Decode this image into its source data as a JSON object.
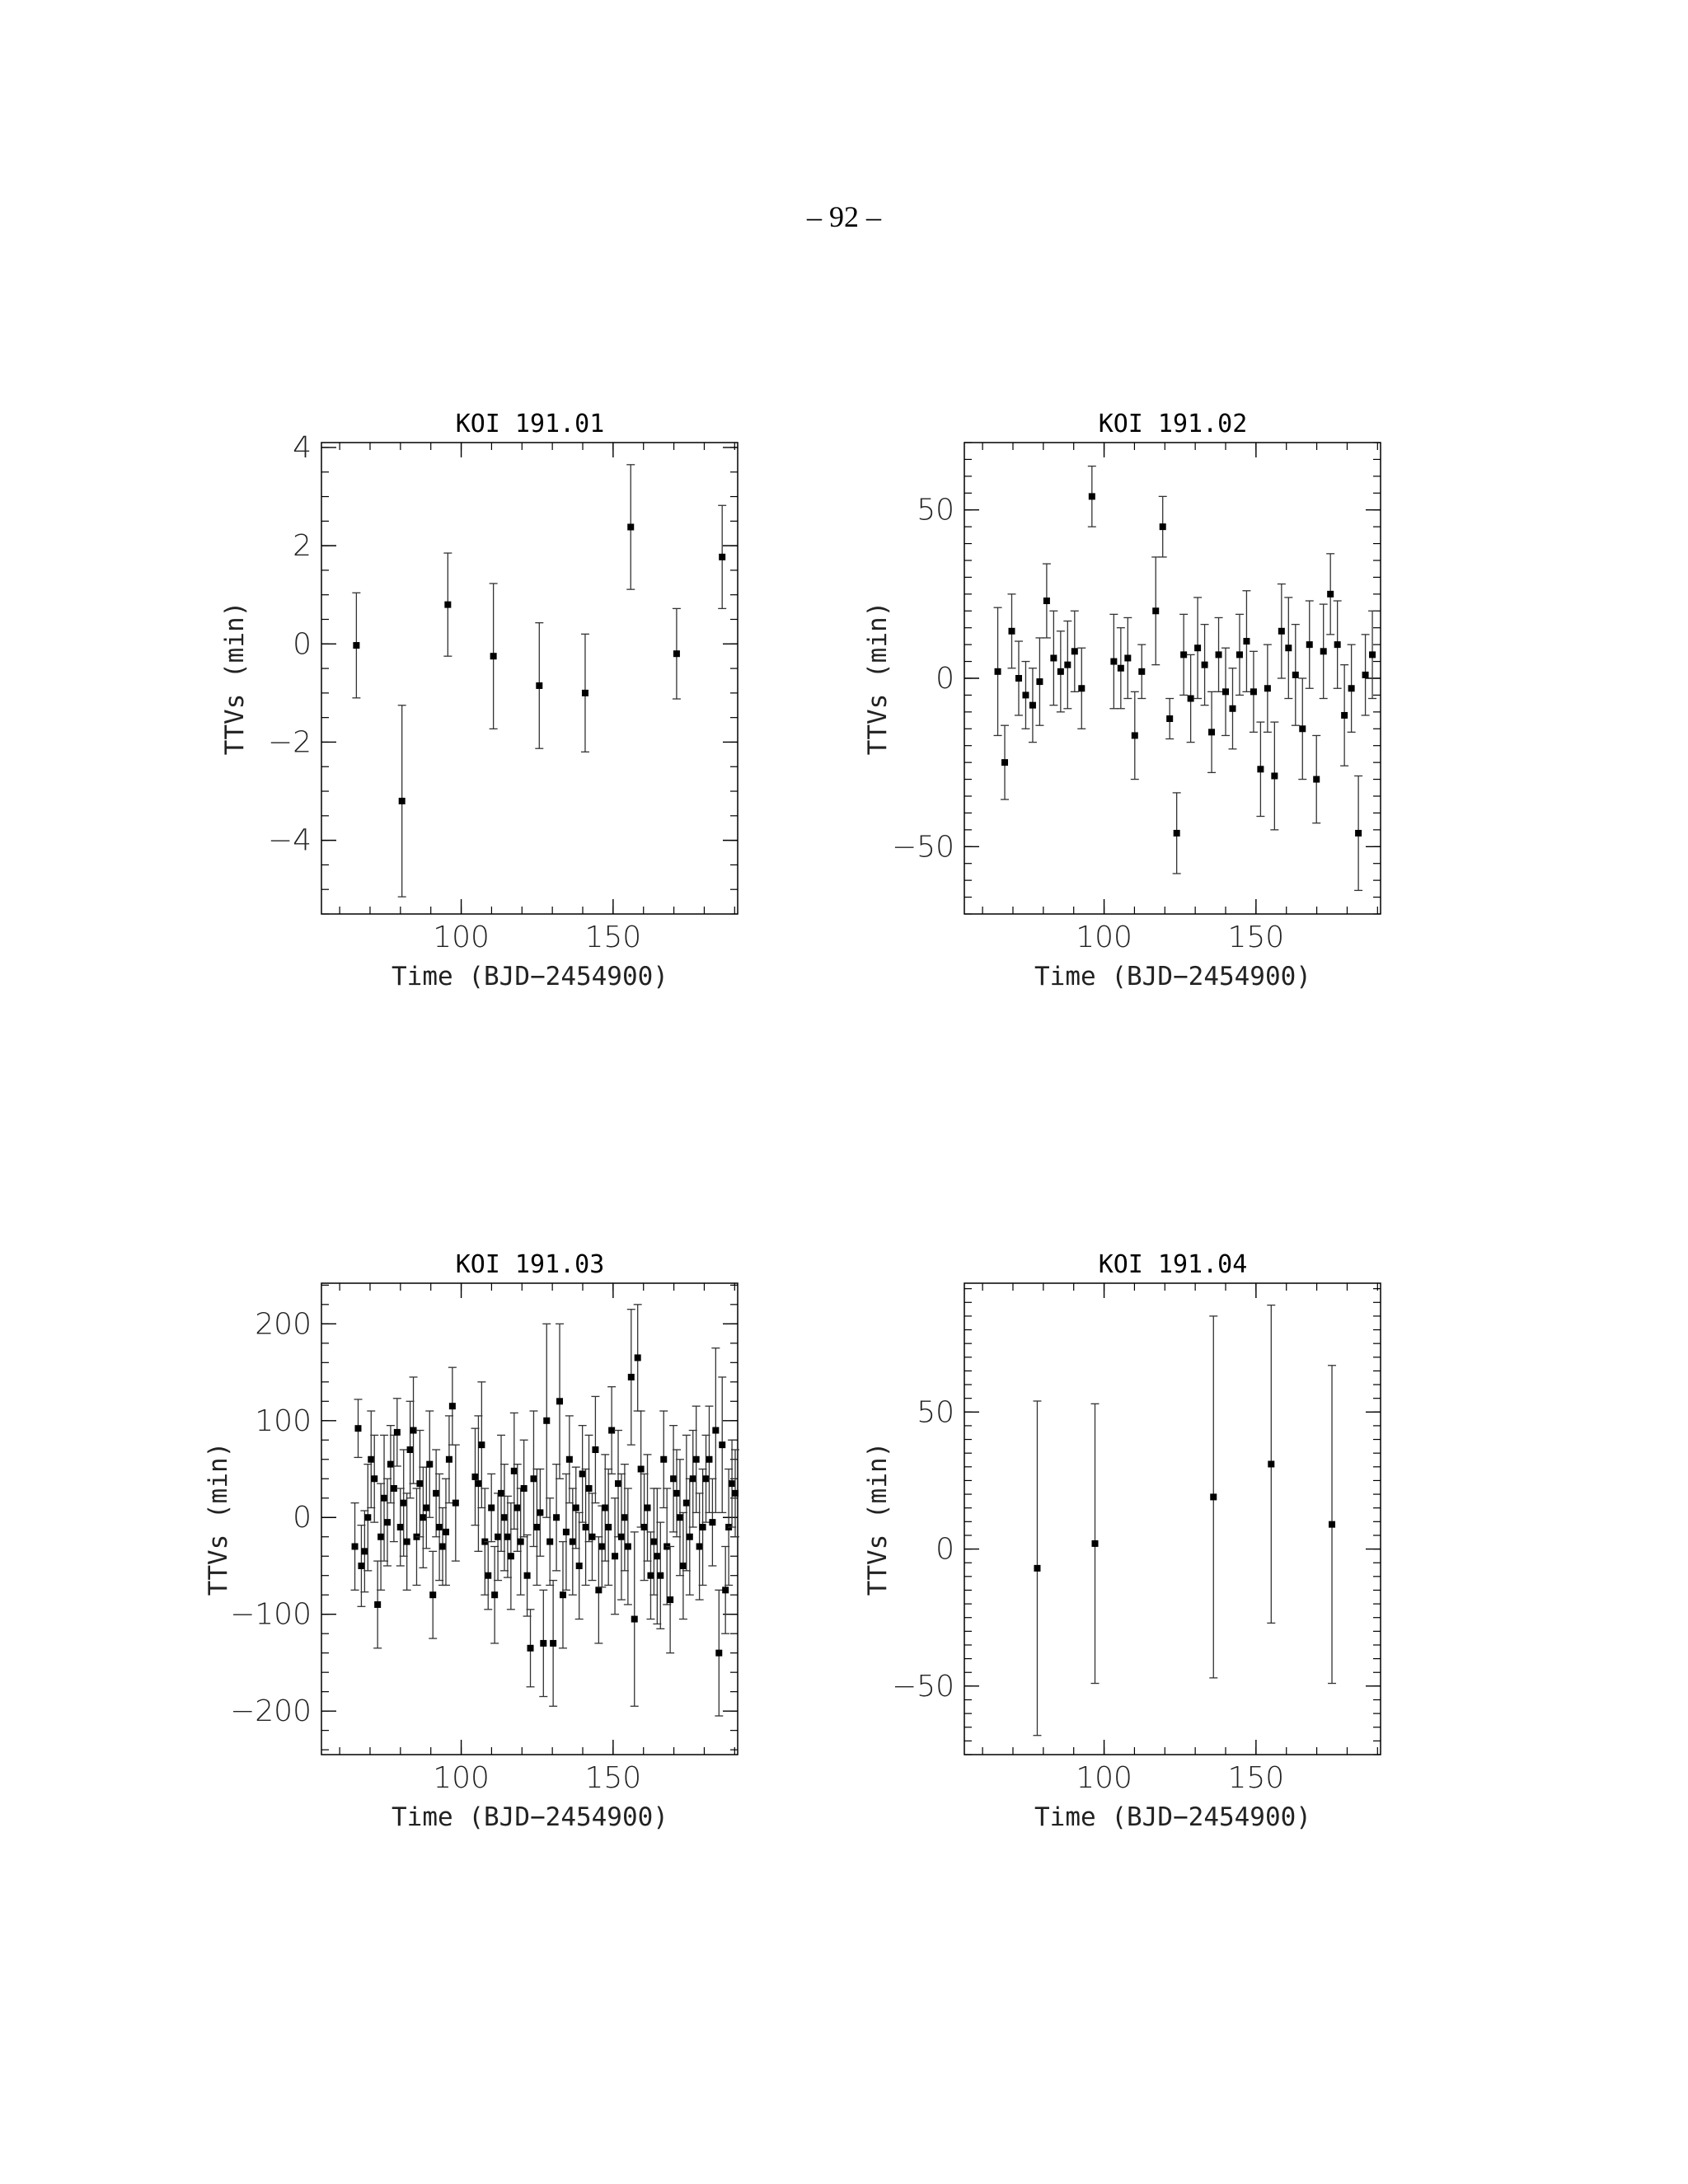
{
  "page": {
    "number_text": "– 92 –"
  },
  "chart_data": [
    {
      "type": "scatter",
      "title": "KOI 191.01",
      "xlabel": "Time (BJD−2454900)",
      "ylabel": "TTVs (min)",
      "xlim": [
        54,
        191
      ],
      "ylim": [
        -5.5,
        4.1
      ],
      "xticks": [
        100,
        150
      ],
      "xtick_labels": [
        "100",
        "150"
      ],
      "yticks": [
        -4,
        -2,
        0,
        2,
        4
      ],
      "ytick_labels": [
        "−4",
        "−2",
        "0",
        "2",
        "4"
      ],
      "x": [
        65.5,
        80.5,
        95.6,
        110.6,
        125.7,
        140.8,
        155.8,
        170.9,
        185.9
      ],
      "y": [
        -0.03,
        -3.2,
        0.8,
        -0.25,
        -0.85,
        -1.0,
        2.38,
        -0.2,
        1.77
      ],
      "yerr": [
        1.07,
        1.95,
        1.05,
        1.48,
        1.28,
        1.2,
        1.27,
        0.92,
        1.05
      ]
    },
    {
      "type": "scatter",
      "title": "KOI 191.02",
      "xlabel": "Time (BJD−2454900)",
      "ylabel": "TTVs (min)",
      "xlim": [
        54,
        191
      ],
      "ylim": [
        -70,
        70
      ],
      "xticks": [
        100,
        150
      ],
      "xtick_labels": [
        "100",
        "150"
      ],
      "yticks": [
        -50,
        0,
        50
      ],
      "ytick_labels": [
        "−50",
        "0",
        "50"
      ],
      "x": [
        65.0,
        67.3,
        69.6,
        71.9,
        74.2,
        76.5,
        78.8,
        81.1,
        83.4,
        85.7,
        88.0,
        90.3,
        92.6,
        96.0,
        103.2,
        105.5,
        107.8,
        110.1,
        112.4,
        117.0,
        119.3,
        121.6,
        123.9,
        126.2,
        128.5,
        130.8,
        133.1,
        135.4,
        137.7,
        140.0,
        142.3,
        144.6,
        146.9,
        149.2,
        151.5,
        153.8,
        156.1,
        158.4,
        160.7,
        163.0,
        165.3,
        167.6,
        169.9,
        172.2,
        174.5,
        176.8,
        179.1,
        181.4,
        183.7,
        186.0,
        188.3
      ],
      "y": [
        2,
        -25,
        14,
        0,
        -5,
        -8,
        -1,
        23,
        6,
        2,
        4,
        8,
        -3,
        54,
        5,
        3,
        6,
        -17,
        2,
        20,
        45,
        -12,
        -46,
        7,
        -6,
        9,
        4,
        -16,
        7,
        -4,
        -9,
        7,
        11,
        -4,
        -27,
        -3,
        -29,
        14,
        9,
        1,
        -15,
        10,
        -30,
        8,
        25,
        10,
        -11,
        -3,
        -46,
        1,
        7
      ],
      "yerr": [
        19,
        11,
        11,
        11,
        10,
        11,
        13,
        11,
        14,
        12,
        13,
        12,
        12,
        9,
        14,
        12,
        12,
        13,
        8,
        16,
        9,
        6,
        12,
        12,
        13,
        15,
        12,
        12,
        11,
        13,
        12,
        12,
        15,
        12,
        14,
        13,
        16,
        14,
        15,
        15,
        15,
        13,
        13,
        14,
        12,
        13,
        15,
        13,
        17,
        12,
        13
      ]
    },
    {
      "type": "scatter",
      "title": "KOI 191.03",
      "xlabel": "Time (BJD−2454900)",
      "ylabel": "TTVs (min)",
      "xlim": [
        54,
        191
      ],
      "ylim": [
        -245,
        242
      ],
      "xticks": [
        100,
        150
      ],
      "xtick_labels": [
        "100",
        "150"
      ],
      "yticks": [
        -200,
        -100,
        0,
        100,
        200
      ],
      "ytick_labels": [
        "−200",
        "−100",
        "0",
        "100",
        "200"
      ],
      "x": [
        65.0,
        66.07,
        67.14,
        68.21,
        69.28,
        70.35,
        71.42,
        72.49,
        73.56,
        74.63,
        75.7,
        76.77,
        77.84,
        78.91,
        79.98,
        81.05,
        82.12,
        83.19,
        84.26,
        85.33,
        86.4,
        87.47,
        88.54,
        89.61,
        90.68,
        91.75,
        92.82,
        93.89,
        94.96,
        96.03,
        97.1,
        98.17,
        104.59,
        105.66,
        106.73,
        107.8,
        108.87,
        109.94,
        111.01,
        112.08,
        113.15,
        114.22,
        115.29,
        116.36,
        117.43,
        118.5,
        119.57,
        120.64,
        121.71,
        122.78,
        123.85,
        124.92,
        125.99,
        127.06,
        128.13,
        129.2,
        130.27,
        131.34,
        132.41,
        133.48,
        134.55,
        135.62,
        136.69,
        137.76,
        138.83,
        139.9,
        140.97,
        142.04,
        143.11,
        144.18,
        145.25,
        146.32,
        147.39,
        148.46,
        149.53,
        150.6,
        151.67,
        152.74,
        153.81,
        154.88,
        155.95,
        157.02,
        158.09,
        159.16,
        160.23,
        161.3,
        162.37,
        163.44,
        164.51,
        165.58,
        166.65,
        167.72,
        168.79,
        169.86,
        170.93,
        172.0,
        173.07,
        174.14,
        175.21,
        176.28,
        177.35,
        178.42,
        179.49,
        180.56,
        181.63,
        182.7,
        183.77,
        184.84,
        185.91,
        186.98,
        188.05,
        189.12,
        190.19
      ],
      "y": [
        -30,
        92,
        -50,
        -35,
        0,
        60,
        40,
        -90,
        -20,
        20,
        -5,
        55,
        30,
        88,
        -10,
        15,
        -25,
        70,
        90,
        -20,
        35,
        0,
        10,
        55,
        -80,
        25,
        -10,
        -30,
        -15,
        60,
        115,
        15,
        42,
        35,
        75,
        -25,
        -60,
        10,
        -80,
        -20,
        25,
        0,
        -20,
        -40,
        48,
        10,
        -25,
        30,
        -60,
        -135,
        40,
        -10,
        5,
        -130,
        100,
        -25,
        -130,
        0,
        120,
        -80,
        -15,
        60,
        -25,
        10,
        -50,
        45,
        -10,
        30,
        -20,
        70,
        -75,
        -30,
        10,
        -10,
        90,
        -40,
        35,
        -20,
        0,
        -30,
        145,
        -105,
        165,
        50,
        -10,
        10,
        -60,
        -25,
        -40,
        -60,
        60,
        -30,
        -85,
        40,
        25,
        0,
        -50,
        15,
        -20,
        40,
        60,
        -30,
        -10,
        40,
        60,
        -5,
        90,
        -140,
        75,
        -75,
        -10,
        35,
        25
      ],
      "yerr": [
        45,
        30,
        42,
        42,
        55,
        50,
        45,
        45,
        55,
        65,
        45,
        40,
        55,
        35,
        40,
        55,
        50,
        50,
        55,
        50,
        55,
        52,
        42,
        55,
        45,
        45,
        55,
        40,
        55,
        45,
        40,
        60,
        50,
        70,
        65,
        55,
        35,
        35,
        50,
        45,
        60,
        55,
        42,
        55,
        60,
        45,
        55,
        50,
        42,
        40,
        70,
        60,
        45,
        55,
        100,
        45,
        65,
        55,
        80,
        55,
        60,
        45,
        55,
        42,
        55,
        50,
        60,
        55,
        45,
        55,
        55,
        42,
        55,
        60,
        45,
        60,
        55,
        65,
        55,
        60,
        70,
        90,
        55,
        60,
        55,
        55,
        45,
        55,
        70,
        55,
        50,
        60,
        55,
        55,
        45,
        60,
        55,
        70,
        60,
        50,
        55,
        55,
        60,
        45,
        55,
        45,
        85,
        65,
        70,
        45,
        60,
        45,
        45
      ]
    },
    {
      "type": "scatter",
      "title": "KOI 191.04",
      "xlabel": "Time (BJD−2454900)",
      "ylabel": "TTVs (min)",
      "xlim": [
        54,
        191
      ],
      "ylim": [
        -75,
        97
      ],
      "xticks": [
        100,
        150
      ],
      "xtick_labels": [
        "100",
        "150"
      ],
      "yticks": [
        -50,
        0,
        50
      ],
      "ytick_labels": [
        "−50",
        "0",
        "50"
      ],
      "x": [
        78.0,
        97.0,
        136.0,
        155.0,
        175.0
      ],
      "y": [
        -7,
        2,
        19,
        31,
        9
      ],
      "yerr": [
        61,
        51,
        66,
        58,
        58
      ]
    }
  ]
}
